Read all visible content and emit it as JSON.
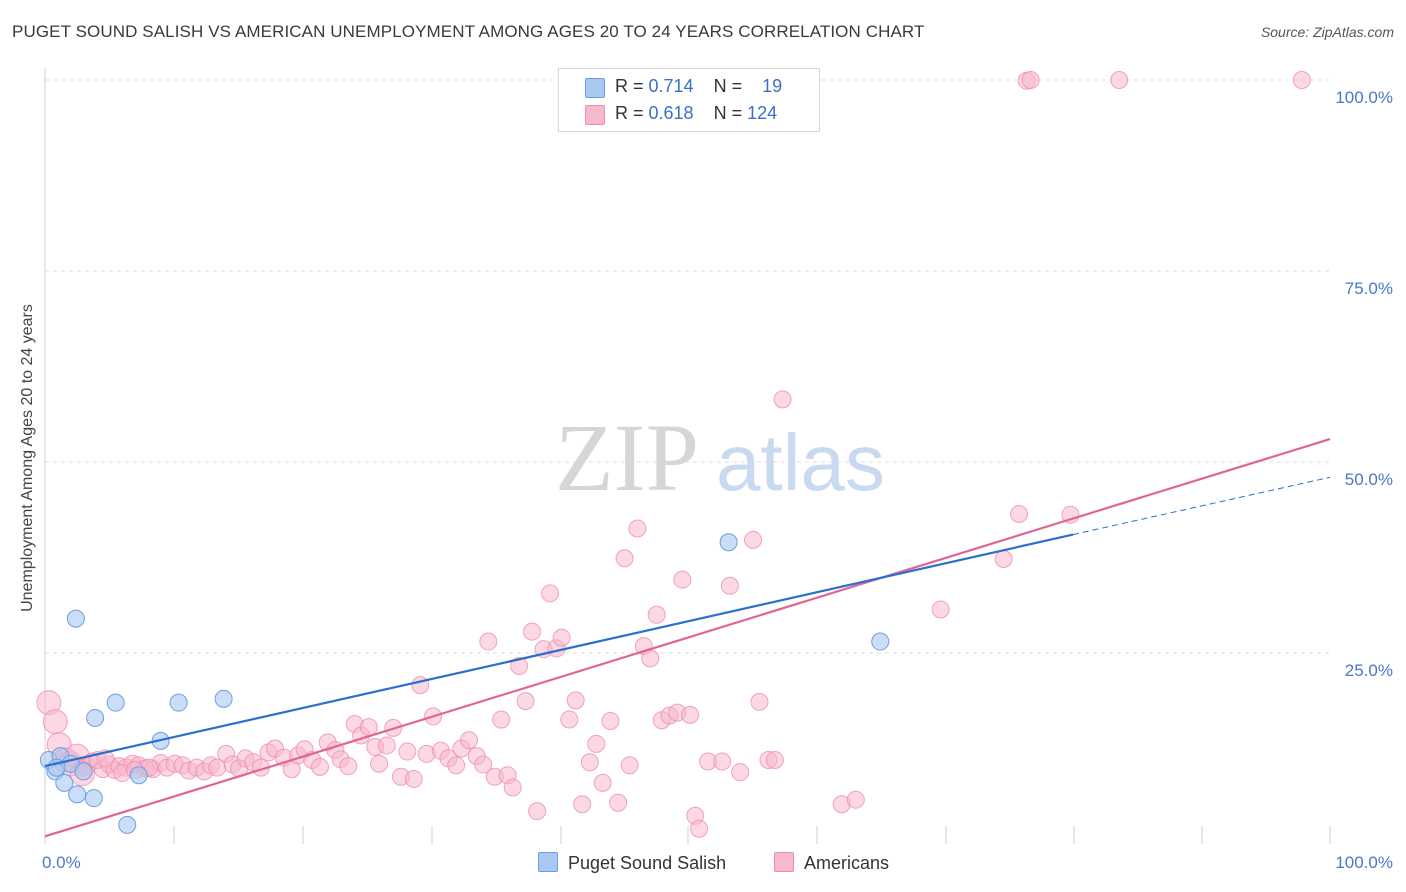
{
  "title": "PUGET SOUND SALISH VS AMERICAN UNEMPLOYMENT AMONG AGES 20 TO 24 YEARS CORRELATION CHART",
  "source": "Source: ZipAtlas.com",
  "watermark": {
    "zip": "ZIP",
    "atlas": "atlas"
  },
  "legend": {
    "rows": [
      {
        "r_label": "R = ",
        "r_value": "0.714",
        "n_label": "N = ",
        "n_value": "19"
      },
      {
        "r_label": "R = ",
        "r_value": "0.618",
        "n_label": "N = ",
        "n_value": "124"
      }
    ]
  },
  "bottom_legend": {
    "series1": "Puget Sound Salish",
    "series2": "Americans"
  },
  "colors": {
    "blue_fill": "#a9c8f2",
    "blue_stroke": "#6f9ee0",
    "blue_line": "#2a6fce",
    "pink_fill": "#f7b8cc",
    "pink_stroke": "#ec8fae",
    "pink_line": "#e0649a",
    "grid": "#dcdcdc",
    "tick_text": "#4a78c8"
  },
  "chart_data": {
    "type": "scatter",
    "title": "PUGET SOUND SALISH VS AMERICAN UNEMPLOYMENT AMONG AGES 20 TO 24 YEARS CORRELATION CHART",
    "xlabel": "",
    "ylabel": "Unemployment Among Ages 20 to 24 years",
    "xlim": [
      0,
      100
    ],
    "ylim": [
      0,
      102
    ],
    "x_tick_labels": [
      "0.0%",
      "100.0%"
    ],
    "y_tick_labels": [
      "25.0%",
      "50.0%",
      "75.0%",
      "100.0%"
    ],
    "y_ticks": [
      25,
      50,
      75,
      100
    ],
    "series": [
      {
        "name": "Puget Sound Salish",
        "r": 0.714,
        "n": 19,
        "trend": {
          "x": [
            0,
            80
          ],
          "y": [
            10.2,
            40.5
          ],
          "dashed_to": [
            100,
            48.0
          ]
        },
        "points": [
          [
            0.3,
            11.0
          ],
          [
            1.2,
            11.5
          ],
          [
            0.8,
            9.5
          ],
          [
            1.5,
            8.0
          ],
          [
            2.0,
            10.5
          ],
          [
            2.5,
            6.5
          ],
          [
            3.0,
            9.5
          ],
          [
            3.8,
            6.0
          ],
          [
            2.4,
            29.5
          ],
          [
            3.9,
            16.5
          ],
          [
            5.5,
            18.5
          ],
          [
            6.4,
            2.5
          ],
          [
            7.3,
            9.0
          ],
          [
            9.0,
            13.5
          ],
          [
            10.4,
            18.5
          ],
          [
            13.9,
            19.0
          ],
          [
            53.2,
            39.5
          ],
          [
            65.0,
            26.5
          ],
          [
            0.9,
            10.0
          ]
        ]
      },
      {
        "name": "Americans",
        "r": 0.618,
        "n": 124,
        "trend": {
          "x": [
            0,
            100
          ],
          "y": [
            1.0,
            53.0
          ]
        },
        "points": [
          [
            0.3,
            18.5
          ],
          [
            0.8,
            16.0
          ],
          [
            1.1,
            13.0
          ],
          [
            1.6,
            11.0
          ],
          [
            2.0,
            10.5
          ],
          [
            2.5,
            11.5
          ],
          [
            3.0,
            10.0
          ],
          [
            3.3,
            10.2
          ],
          [
            3.7,
            10.8
          ],
          [
            4.1,
            11.0
          ],
          [
            4.5,
            9.8
          ],
          [
            5.0,
            10.4
          ],
          [
            5.4,
            9.7
          ],
          [
            5.8,
            10.2
          ],
          [
            6.3,
            10.0
          ],
          [
            6.8,
            10.5
          ],
          [
            7.3,
            10.3
          ],
          [
            7.8,
            9.9
          ],
          [
            8.4,
            9.8
          ],
          [
            9.0,
            10.6
          ],
          [
            9.5,
            10.0
          ],
          [
            10.1,
            10.5
          ],
          [
            10.7,
            10.3
          ],
          [
            11.2,
            9.6
          ],
          [
            11.8,
            10.0
          ],
          [
            12.4,
            9.5
          ],
          [
            12.9,
            10.3
          ],
          [
            13.4,
            10.0
          ],
          [
            14.1,
            11.8
          ],
          [
            14.6,
            10.4
          ],
          [
            15.1,
            9.9
          ],
          [
            15.6,
            11.2
          ],
          [
            16.2,
            10.7
          ],
          [
            16.8,
            10.0
          ],
          [
            17.4,
            12.0
          ],
          [
            17.9,
            12.5
          ],
          [
            18.6,
            11.3
          ],
          [
            19.2,
            9.8
          ],
          [
            19.7,
            11.6
          ],
          [
            20.2,
            12.4
          ],
          [
            20.8,
            11.0
          ],
          [
            21.4,
            10.1
          ],
          [
            22.0,
            13.3
          ],
          [
            22.6,
            12.3
          ],
          [
            23.0,
            11.1
          ],
          [
            23.6,
            10.2
          ],
          [
            24.1,
            15.7
          ],
          [
            24.6,
            14.2
          ],
          [
            25.2,
            15.3
          ],
          [
            25.7,
            12.7
          ],
          [
            26.0,
            10.5
          ],
          [
            26.6,
            12.9
          ],
          [
            27.1,
            15.2
          ],
          [
            27.7,
            8.8
          ],
          [
            28.2,
            12.1
          ],
          [
            28.7,
            8.5
          ],
          [
            29.2,
            20.8
          ],
          [
            29.7,
            11.8
          ],
          [
            30.2,
            16.7
          ],
          [
            30.8,
            12.2
          ],
          [
            31.4,
            11.2
          ],
          [
            32.0,
            10.3
          ],
          [
            32.4,
            12.5
          ],
          [
            33.0,
            13.6
          ],
          [
            33.6,
            11.5
          ],
          [
            34.1,
            10.4
          ],
          [
            34.5,
            26.5
          ],
          [
            35.0,
            8.8
          ],
          [
            35.5,
            16.3
          ],
          [
            36.0,
            9.0
          ],
          [
            36.4,
            7.4
          ],
          [
            36.9,
            23.3
          ],
          [
            37.4,
            18.7
          ],
          [
            37.9,
            27.8
          ],
          [
            38.3,
            4.3
          ],
          [
            38.8,
            25.5
          ],
          [
            39.3,
            32.8
          ],
          [
            39.8,
            25.6
          ],
          [
            40.2,
            27.0
          ],
          [
            40.8,
            16.3
          ],
          [
            41.3,
            18.8
          ],
          [
            41.8,
            5.2
          ],
          [
            42.4,
            10.7
          ],
          [
            42.9,
            13.1
          ],
          [
            43.4,
            8.0
          ],
          [
            44.0,
            16.1
          ],
          [
            44.6,
            5.4
          ],
          [
            45.1,
            37.4
          ],
          [
            45.5,
            10.3
          ],
          [
            46.1,
            41.3
          ],
          [
            46.6,
            25.9
          ],
          [
            47.1,
            24.3
          ],
          [
            47.6,
            30.0
          ],
          [
            48.0,
            16.2
          ],
          [
            48.6,
            16.8
          ],
          [
            49.2,
            17.2
          ],
          [
            49.6,
            34.6
          ],
          [
            50.2,
            16.9
          ],
          [
            50.6,
            3.7
          ],
          [
            50.9,
            2.0
          ],
          [
            51.6,
            10.8
          ],
          [
            52.7,
            10.8
          ],
          [
            53.3,
            33.8
          ],
          [
            54.1,
            9.4
          ],
          [
            55.1,
            39.8
          ],
          [
            55.6,
            18.6
          ],
          [
            56.3,
            11.0
          ],
          [
            56.8,
            11.0
          ],
          [
            57.4,
            58.2
          ],
          [
            62.0,
            5.2
          ],
          [
            63.1,
            5.8
          ],
          [
            69.7,
            30.7
          ],
          [
            74.6,
            37.3
          ],
          [
            75.8,
            43.2
          ],
          [
            79.8,
            43.1
          ],
          [
            76.4,
            99.9
          ],
          [
            76.7,
            100.0
          ],
          [
            83.6,
            100.0
          ],
          [
            97.8,
            100.0
          ],
          [
            4.7,
            11.2
          ],
          [
            2.9,
            9.2
          ],
          [
            6.0,
            9.3
          ],
          [
            8.1,
            10.0
          ],
          [
            7.0,
            9.7
          ]
        ]
      }
    ]
  }
}
